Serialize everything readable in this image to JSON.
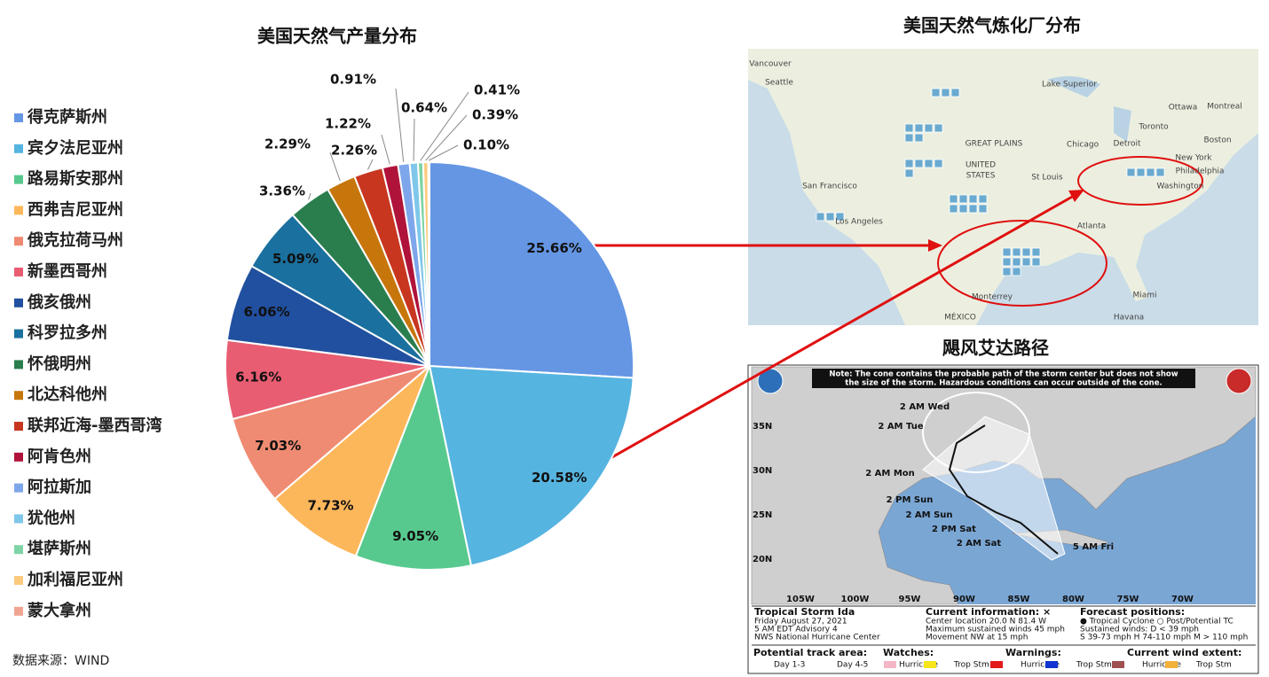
{
  "chart_data": {
    "type": "pie",
    "title": "美国天然气产量分布",
    "categories": [
      "得克萨斯州",
      "宾夕法尼亚州",
      "路易斯安那州",
      "西弗吉尼亚州",
      "俄克拉荷马州",
      "新墨西哥州",
      "俄亥俄州",
      "科罗拉多州",
      "怀俄明州",
      "北达科他州",
      "联邦近海-墨西哥湾",
      "阿肯色州",
      "阿拉斯加",
      "犹他州",
      "堪萨斯州",
      "加利福尼亚州",
      "蒙大拿州"
    ],
    "values": [
      25.66,
      20.58,
      9.05,
      7.73,
      7.03,
      6.16,
      6.06,
      5.09,
      3.36,
      2.29,
      2.26,
      1.22,
      0.91,
      0.64,
      0.41,
      0.39,
      0.1
    ],
    "value_labels": [
      "25.66%",
      "20.58%",
      "9.05%",
      "7.73%",
      "7.03%",
      "6.16%",
      "6.06%",
      "5.09%",
      "3.36%",
      "2.29%",
      "2.26%",
      "1.22%",
      "0.91%",
      "0.64%",
      "0.41%",
      "0.39%",
      "0.10%"
    ],
    "colors": [
      "#6496e4",
      "#56b4e0",
      "#58c98e",
      "#fdb75b",
      "#ef8b72",
      "#e85d72",
      "#2150a0",
      "#1a709e",
      "#2a7e4e",
      "#c7760c",
      "#c8361f",
      "#b0133a",
      "#7ea6ea",
      "#7ec7ea",
      "#7ed4a5",
      "#fdca7e",
      "#f0a592"
    ],
    "legend": "left",
    "source": "数据来源：WIND"
  },
  "refinery_map": {
    "title": "美国天然气炼化厂分布",
    "labels": [
      "Vancouver",
      "Seattle",
      "GREAT PLAINS",
      "UNITED",
      "STATES",
      "San Francisco",
      "Los Angeles",
      "St Louis",
      "Chicago",
      "Detroit",
      "Toronto",
      "Ottawa",
      "Montreal",
      "Boston",
      "New York",
      "Philadelphia",
      "Washington",
      "Atlanta",
      "Miami",
      "Havana",
      "Monterrey",
      "MÉXICO",
      "Lake Superior"
    ]
  },
  "hurricane_map": {
    "title": "飓风艾达路径",
    "note": [
      "Note: The cone contains the probable path of the storm center but does not show",
      "the size of the storm. Hazardous conditions can occur outside of the cone."
    ],
    "track_labels": [
      "2 AM Wed",
      "2 AM Tue",
      "2 AM Mon",
      "2 PM Sun",
      "2 AM Sun",
      "2 PM Sat",
      "2 AM Sat",
      "5 AM Fri"
    ],
    "lat_labels": [
      "35N",
      "30N",
      "25N",
      "20N"
    ],
    "lon_labels": [
      "105W",
      "100W",
      "95W",
      "90W",
      "85W",
      "80W",
      "75W",
      "70W"
    ],
    "footer": [
      "Tropical Storm Ida",
      "Friday August 27, 2021",
      "5 AM EDT Advisory 4",
      "NWS National Hurricane Center",
      "Current information: ×",
      "Center location 20.0 N 81.4 W",
      "Maximum sustained winds 45 mph",
      "Movement NW at 15 mph",
      "Forecast positions:",
      "● Tropical Cyclone  ○ Post/Potential TC",
      "Sustained winds:      D < 39 mph",
      "S 39-73 mph  H 74-110 mph  M > 110 mph",
      "Potential track area:",
      "Day 1-3",
      "Day 4-5",
      "Watches:",
      "Hurricane",
      "Trop Stm",
      "Warnings:",
      "Hurricane",
      "Trop Stm",
      "Current wind extent:",
      "Hurricane",
      "Trop Stm"
    ]
  }
}
